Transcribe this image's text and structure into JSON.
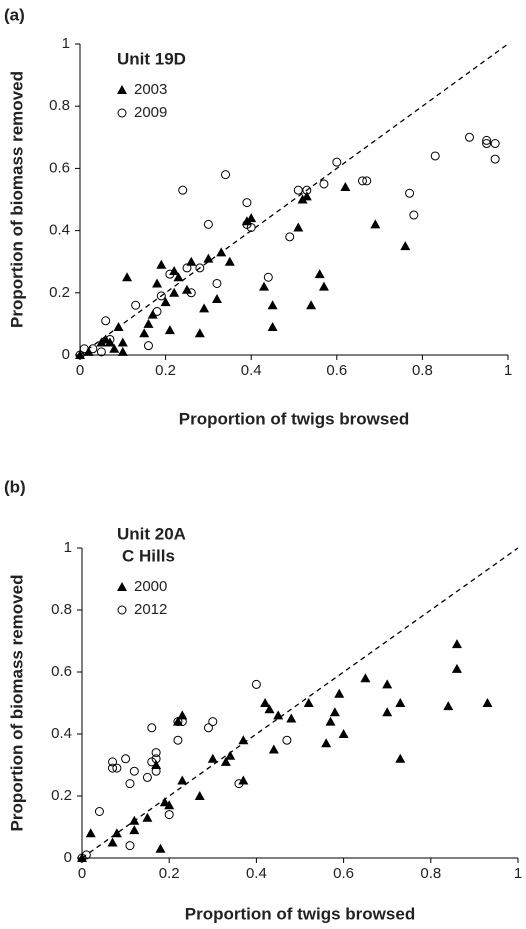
{
  "chart_data": [
    {
      "type": "scatter",
      "panel_label": "(a)",
      "legend_title": [
        "Unit 19D"
      ],
      "x_label": "Proportion of twigs browsed",
      "y_label": "Proportion of biomass removed",
      "xlim": [
        0,
        1
      ],
      "ylim": [
        0,
        1
      ],
      "xticks": [
        0,
        0.2,
        0.4,
        0.6,
        0.8,
        1
      ],
      "yticks": [
        0,
        0.2,
        0.4,
        0.6,
        0.8,
        1
      ],
      "reference_line": "1:1",
      "series": [
        {
          "name": "2003",
          "color": "#000000",
          "marker": "triangle",
          "x": [
            0,
            0.02,
            0.05,
            0.06,
            0.07,
            0.08,
            0.09,
            0.1,
            0.1,
            0.11,
            0.15,
            0.16,
            0.17,
            0.18,
            0.19,
            0.2,
            0.21,
            0.22,
            0.22,
            0.23,
            0.25,
            0.26,
            0.28,
            0.29,
            0.3,
            0.32,
            0.33,
            0.35,
            0.39,
            0.4,
            0.43,
            0.45,
            0.45,
            0.51,
            0.52,
            0.53,
            0.54,
            0.56,
            0.57,
            0.62,
            0.69,
            0.76
          ],
          "y": [
            0,
            0.01,
            0.04,
            0.05,
            0.04,
            0.02,
            0.09,
            0.01,
            0.04,
            0.25,
            0.07,
            0.1,
            0.13,
            0.23,
            0.29,
            0.17,
            0.08,
            0.27,
            0.2,
            0.25,
            0.21,
            0.3,
            0.07,
            0.15,
            0.31,
            0.18,
            0.33,
            0.3,
            0.43,
            0.44,
            0.22,
            0.09,
            0.16,
            0.41,
            0.5,
            0.51,
            0.16,
            0.26,
            0.22,
            0.54,
            0.42,
            0.35
          ]
        },
        {
          "name": "2009",
          "color": "#000000",
          "marker": "circle-open",
          "x": [
            0,
            0.01,
            0.03,
            0.05,
            0.06,
            0.07,
            0.13,
            0.16,
            0.18,
            0.19,
            0.21,
            0.24,
            0.25,
            0.26,
            0.28,
            0.3,
            0.32,
            0.34,
            0.39,
            0.39,
            0.4,
            0.44,
            0.49,
            0.51,
            0.53,
            0.57,
            0.6,
            0.66,
            0.67,
            0.77,
            0.78,
            0.83,
            0.91,
            0.95,
            0.95,
            0.97,
            0.97
          ],
          "y": [
            0,
            0.02,
            0.02,
            0.01,
            0.11,
            0.05,
            0.16,
            0.03,
            0.14,
            0.19,
            0.26,
            0.53,
            0.28,
            0.2,
            0.28,
            0.42,
            0.23,
            0.58,
            0.49,
            0.42,
            0.41,
            0.25,
            0.38,
            0.53,
            0.53,
            0.55,
            0.62,
            0.56,
            0.56,
            0.52,
            0.45,
            0.64,
            0.7,
            0.68,
            0.69,
            0.68,
            0.63
          ]
        }
      ]
    },
    {
      "type": "scatter",
      "panel_label": "(b)",
      "legend_title": [
        "Unit 20A",
        "C Hills"
      ],
      "x_label": "Proportion of twigs browsed",
      "y_label": "Proportion of biomass removed",
      "xlim": [
        0,
        1
      ],
      "ylim": [
        0,
        1
      ],
      "xticks": [
        0,
        0.2,
        0.4,
        0.6,
        0.8,
        1
      ],
      "yticks": [
        0,
        0.2,
        0.4,
        0.6,
        0.8,
        1
      ],
      "reference_line": "1:1",
      "series": [
        {
          "name": "2000",
          "color": "#000000",
          "marker": "triangle",
          "x": [
            0,
            0.02,
            0.07,
            0.08,
            0.12,
            0.12,
            0.15,
            0.17,
            0.18,
            0.19,
            0.2,
            0.22,
            0.23,
            0.23,
            0.27,
            0.3,
            0.33,
            0.34,
            0.37,
            0.37,
            0.42,
            0.43,
            0.44,
            0.45,
            0.48,
            0.52,
            0.56,
            0.57,
            0.58,
            0.59,
            0.6,
            0.65,
            0.7,
            0.7,
            0.73,
            0.73,
            0.84,
            0.86,
            0.86,
            0.93
          ],
          "y": [
            0,
            0.08,
            0.05,
            0.08,
            0.12,
            0.09,
            0.13,
            0.3,
            0.03,
            0.18,
            0.17,
            0.44,
            0.46,
            0.25,
            0.2,
            0.32,
            0.31,
            0.33,
            0.25,
            0.38,
            0.5,
            0.48,
            0.35,
            0.46,
            0.45,
            0.5,
            0.37,
            0.44,
            0.47,
            0.53,
            0.4,
            0.58,
            0.56,
            0.47,
            0.5,
            0.32,
            0.49,
            0.69,
            0.61,
            0.5
          ]
        },
        {
          "name": "2012",
          "color": "#000000",
          "marker": "circle-open",
          "x": [
            0,
            0.01,
            0.04,
            0.07,
            0.07,
            0.08,
            0.1,
            0.11,
            0.11,
            0.12,
            0.15,
            0.16,
            0.16,
            0.17,
            0.17,
            0.17,
            0.2,
            0.22,
            0.22,
            0.23,
            0.29,
            0.3,
            0.36,
            0.4,
            0.47
          ],
          "y": [
            0,
            0.01,
            0.15,
            0.29,
            0.31,
            0.29,
            0.32,
            0.24,
            0.04,
            0.28,
            0.26,
            0.42,
            0.31,
            0.32,
            0.34,
            0.28,
            0.14,
            0.38,
            0.44,
            0.44,
            0.42,
            0.44,
            0.24,
            0.56,
            0.38
          ]
        }
      ]
    }
  ]
}
